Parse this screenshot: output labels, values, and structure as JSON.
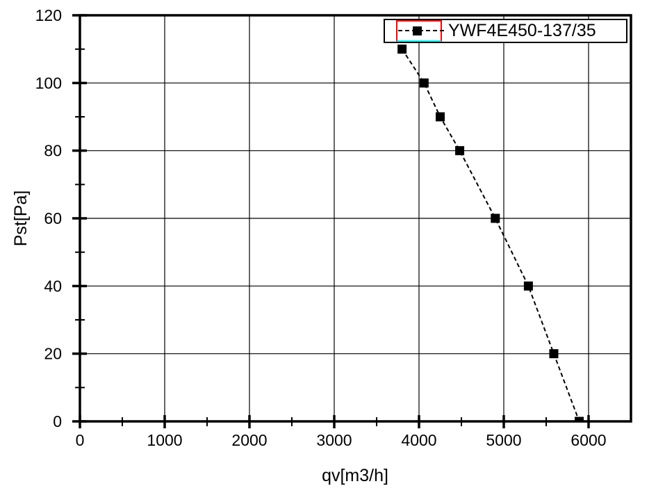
{
  "chart_data": {
    "type": "line",
    "title": "",
    "xlabel": "qv[m3/h]",
    "ylabel": "Pst[Pa]",
    "xlim": [
      0,
      6500
    ],
    "ylim": [
      0,
      120
    ],
    "x_major_ticks": [
      0,
      1000,
      2000,
      3000,
      4000,
      5000,
      6000
    ],
    "x_minor_ticks": [
      500,
      1500,
      2500,
      3500,
      4500,
      5500
    ],
    "y_major_ticks": [
      0,
      20,
      40,
      60,
      80,
      100,
      120
    ],
    "y_minor_ticks": [
      10,
      30,
      50,
      70,
      90,
      110
    ],
    "grid": "major-both",
    "legend_position": "top-right-inside",
    "series": [
      {
        "name": "YWF4E450-137/35",
        "color": "#000000",
        "line_style": "dashed",
        "marker": "filled-square",
        "points": [
          [
            3800,
            110
          ],
          [
            4060,
            100
          ],
          [
            4250,
            90
          ],
          [
            4480,
            80
          ],
          [
            4900,
            60
          ],
          [
            5290,
            40
          ],
          [
            5590,
            20
          ],
          [
            5890,
            0
          ]
        ]
      }
    ]
  },
  "legend": {
    "selection_box_color": "#ff0000",
    "selection_underline_color": "#00ffff",
    "border_color": "#000000"
  },
  "colors": {
    "background": "#ffffff",
    "axis": "#000000",
    "grid": "#000000",
    "text": "#000000"
  }
}
